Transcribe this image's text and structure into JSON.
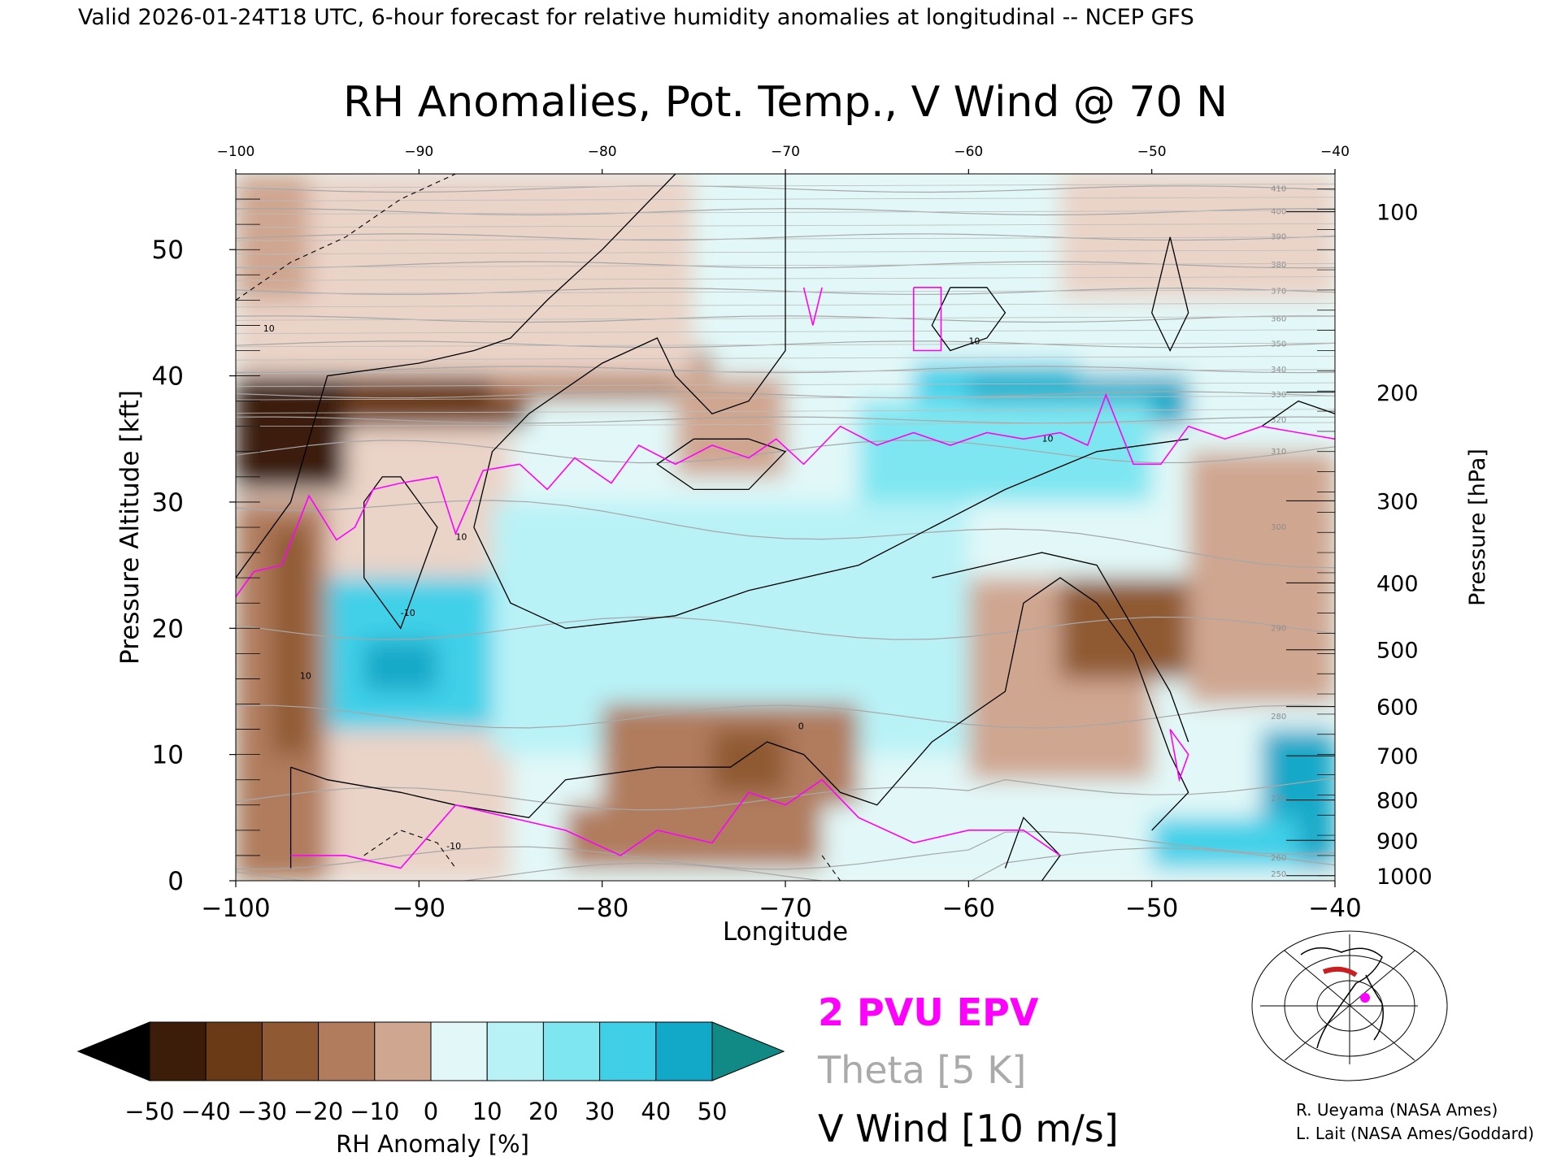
{
  "header": {
    "valid_line": "Valid 2026-01-24T18 UTC, 6-hour forecast for relative humidity anomalies at longitudinal -- NCEP GFS"
  },
  "chart_data": {
    "type": "heatmap",
    "title": "RH Anomalies, Pot. Temp., V Wind @ 70 N",
    "xlabel": "Longitude",
    "ylabel": "Pressure Altitude [kft]",
    "y2label": "Pressure [hPa]",
    "xlim": [
      -100,
      -40
    ],
    "ylim": [
      0,
      56
    ],
    "x_ticks": [
      -100,
      -90,
      -80,
      -70,
      -60,
      -50,
      -40
    ],
    "x_tick_labels": [
      "−100",
      "−90",
      "−80",
      "−70",
      "−60",
      "−50",
      "−40"
    ],
    "y_ticks": [
      0,
      10,
      20,
      30,
      40,
      50
    ],
    "y_tick_labels": [
      "0",
      "10",
      "20",
      "30",
      "40",
      "50"
    ],
    "pressure_ticks": [
      {
        "label": "100",
        "kft": 53.0
      },
      {
        "label": "200",
        "kft": 38.7
      },
      {
        "label": "300",
        "kft": 30.1
      },
      {
        "label": "400",
        "kft": 23.6
      },
      {
        "label": "500",
        "kft": 18.3
      },
      {
        "label": "600",
        "kft": 13.8
      },
      {
        "label": "700",
        "kft": 9.9
      },
      {
        "label": "800",
        "kft": 6.4
      },
      {
        "label": "900",
        "kft": 3.2
      },
      {
        "label": "1000",
        "kft": 0.4
      }
    ],
    "legend": {
      "epv": "2 PVU EPV",
      "theta": "Theta [5 K]",
      "wind": "V Wind [10 m/s]"
    },
    "colorbar": {
      "label": "RH Anomaly [%]",
      "ticks": [
        "−50",
        "−40",
        "−30",
        "−20",
        "−10",
        "0",
        "10",
        "20",
        "30",
        "40",
        "50"
      ],
      "colors": [
        "#3b1d0a",
        "#6a3a16",
        "#8f5a33",
        "#b07c5d",
        "#cfa690",
        "#ead3c7",
        "#e2f8f8",
        "#b8f2f7",
        "#7ee6f1",
        "#3fd0e8",
        "#12a8c8",
        "#087a96"
      ],
      "under_color": "#000000",
      "over_color": "#118a86"
    },
    "theta_contours": [
      {
        "label": "250",
        "kft": 0.5
      },
      {
        "label": "260",
        "kft": 1.8
      },
      {
        "label": "270",
        "kft": 6.5
      },
      {
        "label": "280",
        "kft": 13.0
      },
      {
        "label": "290",
        "kft": 20.0
      },
      {
        "label": "300",
        "kft": 28.0
      },
      {
        "label": "310",
        "kft": 34.0
      },
      {
        "label": "320",
        "kft": 36.5
      },
      {
        "label": "330",
        "kft": 38.5
      },
      {
        "label": "340",
        "kft": 40.5
      },
      {
        "label": "350",
        "kft": 42.5
      },
      {
        "label": "360",
        "kft": 44.5
      },
      {
        "label": "370",
        "kft": 46.7
      },
      {
        "label": "380",
        "kft": 48.8
      },
      {
        "label": "390",
        "kft": 51.0
      },
      {
        "label": "400",
        "kft": 53.0
      },
      {
        "label": "410",
        "kft": 54.8
      }
    ],
    "wind_contour_labels": [
      "10",
      "-10",
      "0"
    ],
    "epv_2pvu": [
      {
        "lon": -100,
        "kft": 22.5
      },
      {
        "lon": -99,
        "kft": 24.5
      },
      {
        "lon": -97.5,
        "kft": 25
      },
      {
        "lon": -96,
        "kft": 30.5
      },
      {
        "lon": -94.5,
        "kft": 27
      },
      {
        "lon": -93.5,
        "kft": 28
      },
      {
        "lon": -92.5,
        "kft": 31
      },
      {
        "lon": -91,
        "kft": 31.5
      },
      {
        "lon": -89,
        "kft": 32
      },
      {
        "lon": -88,
        "kft": 27.5
      },
      {
        "lon": -86.5,
        "kft": 32.5
      },
      {
        "lon": -84.5,
        "kft": 33
      },
      {
        "lon": -83,
        "kft": 31
      },
      {
        "lon": -81.5,
        "kft": 33.5
      },
      {
        "lon": -79.5,
        "kft": 31.5
      },
      {
        "lon": -78,
        "kft": 34.5
      },
      {
        "lon": -76,
        "kft": 33
      },
      {
        "lon": -74,
        "kft": 34.5
      },
      {
        "lon": -72,
        "kft": 33.5
      },
      {
        "lon": -70.5,
        "kft": 35
      },
      {
        "lon": -69,
        "kft": 33
      },
      {
        "lon": -67,
        "kft": 36
      },
      {
        "lon": -65,
        "kft": 34.5
      },
      {
        "lon": -63,
        "kft": 35.5
      },
      {
        "lon": -61,
        "kft": 34.5
      },
      {
        "lon": -59,
        "kft": 35.5
      },
      {
        "lon": -57,
        "kft": 35
      },
      {
        "lon": -55,
        "kft": 35.5
      },
      {
        "lon": -53.5,
        "kft": 34.5
      },
      {
        "lon": -52.5,
        "kft": 38.5
      },
      {
        "lon": -51,
        "kft": 33
      },
      {
        "lon": -49.5,
        "kft": 33
      },
      {
        "lon": -48,
        "kft": 36
      },
      {
        "lon": -46,
        "kft": 35
      },
      {
        "lon": -44,
        "kft": 36
      },
      {
        "lon": -42,
        "kft": 35.5
      },
      {
        "lon": -40,
        "kft": 35
      }
    ]
  },
  "inset_map": {
    "alt": "polar map"
  },
  "credits": {
    "line1": "R. Ueyama (NASA Ames)",
    "line2": "L. Lait (NASA Ames/Goddard)"
  }
}
